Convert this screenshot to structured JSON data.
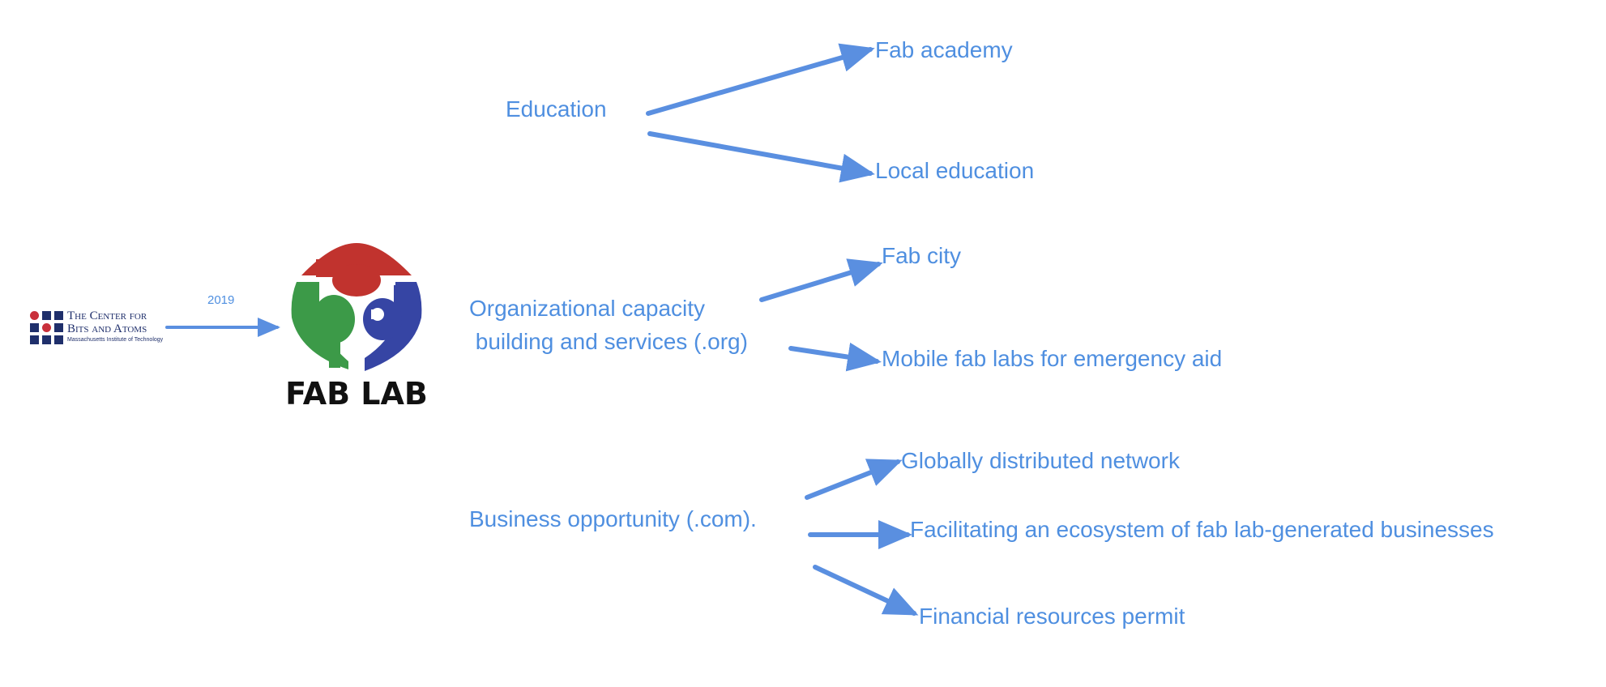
{
  "logos": {
    "cba": {
      "line1": "The Center for",
      "line2": "Bits and Atoms",
      "line3": "Massachusetts Institute of Technology"
    },
    "fablab": {
      "wordmark": "FAB LAB",
      "colors": {
        "red": "#c1332e",
        "green": "#3c9a48",
        "blue": "#3645a4"
      }
    }
  },
  "connector": {
    "label": "2019"
  },
  "branches": [
    {
      "label": "Education",
      "children": [
        "Fab academy",
        "Local education"
      ]
    },
    {
      "label": "Organizational capacity\n building and services (.org)",
      "children": [
        "Fab city",
        "Mobile fab labs for emergency aid"
      ]
    },
    {
      "label": "Business opportunity (.com).",
      "children": [
        "Globally distributed network",
        "Facilitating an ecosystem of fab lab-generated businesses",
        "Financial resources permit"
      ]
    }
  ],
  "colors": {
    "text": "#4f8fe0",
    "arrow": "#5a8fe0"
  }
}
